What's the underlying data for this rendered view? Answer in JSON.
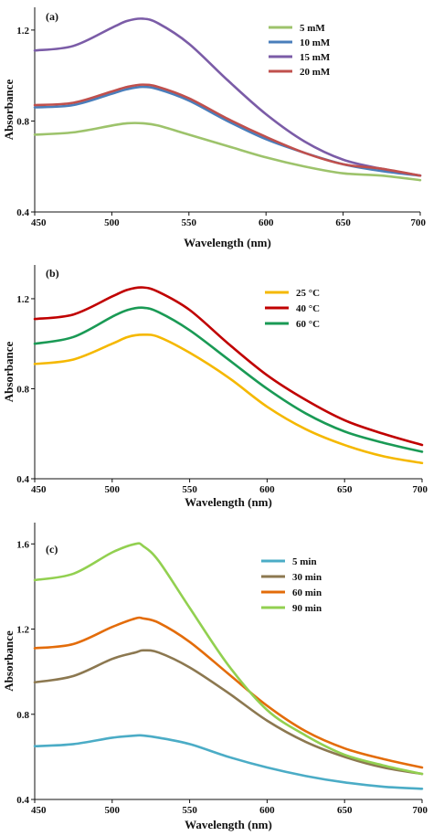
{
  "chart_data": [
    {
      "type": "line",
      "panel_label": "(a)",
      "xlabel": "Wavelength (nm)",
      "ylabel": "Absorbance",
      "xlim": [
        450,
        700
      ],
      "ylim": [
        0.4,
        1.3
      ],
      "xticks": [
        "450",
        "500",
        "550",
        "600",
        "650",
        "700"
      ],
      "yticks": [
        "0.4",
        "0.8",
        "1.2"
      ],
      "grid": false,
      "legend_position": "top-right",
      "x": [
        450,
        475,
        500,
        510,
        520,
        530,
        550,
        575,
        600,
        625,
        650,
        675,
        700
      ],
      "series": [
        {
          "name": "5 mM",
          "color": "#9dc36b",
          "values": [
            0.74,
            0.75,
            0.78,
            0.79,
            0.79,
            0.78,
            0.74,
            0.69,
            0.64,
            0.6,
            0.57,
            0.56,
            0.54
          ]
        },
        {
          "name": "10 mM",
          "color": "#4a7ebb",
          "values": [
            0.86,
            0.87,
            0.92,
            0.94,
            0.95,
            0.94,
            0.89,
            0.8,
            0.72,
            0.66,
            0.61,
            0.58,
            0.56
          ]
        },
        {
          "name": "15 mM",
          "color": "#7b5ca7",
          "values": [
            1.11,
            1.13,
            1.21,
            1.24,
            1.25,
            1.23,
            1.14,
            0.98,
            0.83,
            0.71,
            0.63,
            0.59,
            0.56
          ]
        },
        {
          "name": "20 mM",
          "color": "#c0504d",
          "values": [
            0.87,
            0.88,
            0.93,
            0.95,
            0.96,
            0.95,
            0.9,
            0.81,
            0.73,
            0.66,
            0.61,
            0.59,
            0.56
          ]
        }
      ]
    },
    {
      "type": "line",
      "panel_label": "(b)",
      "xlabel": "Wavelength (nm)",
      "ylabel": "Absorbance",
      "xlim": [
        450,
        700
      ],
      "ylim": [
        0.4,
        1.35
      ],
      "xticks": [
        "450",
        "500",
        "550",
        "600",
        "650",
        "700"
      ],
      "yticks": [
        "0.4",
        "0.8",
        "1.2"
      ],
      "grid": false,
      "legend_position": "top-right",
      "x": [
        450,
        475,
        500,
        510,
        520,
        530,
        550,
        575,
        600,
        625,
        650,
        675,
        700
      ],
      "series": [
        {
          "name": "25 °C",
          "color": "#f5b800",
          "values": [
            0.91,
            0.93,
            1.0,
            1.03,
            1.04,
            1.03,
            0.96,
            0.85,
            0.72,
            0.62,
            0.55,
            0.5,
            0.47
          ]
        },
        {
          "name": "40 °C",
          "color": "#c00000",
          "values": [
            1.11,
            1.13,
            1.21,
            1.24,
            1.25,
            1.23,
            1.15,
            1.0,
            0.86,
            0.75,
            0.66,
            0.6,
            0.55
          ]
        },
        {
          "name": "60 °C",
          "color": "#1a9a55",
          "values": [
            1.0,
            1.03,
            1.12,
            1.15,
            1.16,
            1.14,
            1.06,
            0.93,
            0.8,
            0.69,
            0.61,
            0.56,
            0.52
          ]
        }
      ]
    },
    {
      "type": "line",
      "panel_label": "(c)",
      "xlabel": "Wavelength (nm)",
      "ylabel": "Absorbance",
      "xlim": [
        450,
        700
      ],
      "ylim": [
        0.4,
        1.7
      ],
      "xticks": [
        "450",
        "500",
        "550",
        "600",
        "650",
        "700"
      ],
      "yticks": [
        "0.4",
        "0.8",
        "1.2",
        "1.6"
      ],
      "grid": false,
      "legend_position": "right",
      "x": [
        450,
        475,
        500,
        515,
        520,
        530,
        550,
        575,
        600,
        625,
        650,
        675,
        700
      ],
      "series": [
        {
          "name": "5 min",
          "color": "#4bacc6",
          "values": [
            0.65,
            0.66,
            0.69,
            0.7,
            0.7,
            0.69,
            0.66,
            0.6,
            0.55,
            0.51,
            0.48,
            0.46,
            0.45
          ]
        },
        {
          "name": "30 min",
          "color": "#8c7850",
          "values": [
            0.95,
            0.98,
            1.06,
            1.09,
            1.1,
            1.09,
            1.02,
            0.9,
            0.77,
            0.67,
            0.6,
            0.55,
            0.52
          ]
        },
        {
          "name": "60 min",
          "color": "#e36c0a",
          "values": [
            1.11,
            1.13,
            1.21,
            1.25,
            1.25,
            1.23,
            1.14,
            0.99,
            0.84,
            0.72,
            0.64,
            0.59,
            0.55
          ]
        },
        {
          "name": "90 min",
          "color": "#92d050",
          "values": [
            1.43,
            1.46,
            1.56,
            1.6,
            1.59,
            1.52,
            1.3,
            1.03,
            0.82,
            0.7,
            0.61,
            0.56,
            0.52
          ]
        }
      ]
    }
  ]
}
